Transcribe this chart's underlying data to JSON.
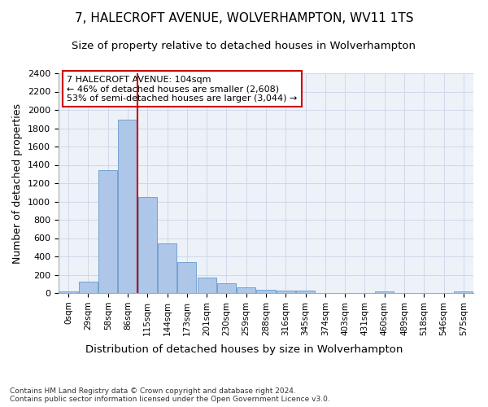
{
  "title_line1": "7, HALECROFT AVENUE, WOLVERHAMPTON, WV11 1TS",
  "title_line2": "Size of property relative to detached houses in Wolverhampton",
  "xlabel": "Distribution of detached houses by size in Wolverhampton",
  "ylabel": "Number of detached properties",
  "footnote": "Contains HM Land Registry data © Crown copyright and database right 2024.\nContains public sector information licensed under the Open Government Licence v3.0.",
  "bar_labels": [
    "0sqm",
    "29sqm",
    "58sqm",
    "86sqm",
    "115sqm",
    "144sqm",
    "173sqm",
    "201sqm",
    "230sqm",
    "259sqm",
    "288sqm",
    "316sqm",
    "345sqm",
    "374sqm",
    "403sqm",
    "431sqm",
    "460sqm",
    "489sqm",
    "518sqm",
    "546sqm",
    "575sqm"
  ],
  "bar_values": [
    15,
    125,
    1340,
    1890,
    1045,
    545,
    335,
    170,
    110,
    60,
    35,
    30,
    25,
    0,
    0,
    0,
    20,
    0,
    0,
    0,
    15
  ],
  "bar_color": "#aec6e8",
  "bar_edge_color": "#6699cc",
  "property_label": "7 HALECROFT AVENUE: 104sqm",
  "pct_smaller": "46% of detached houses are smaller (2,608)",
  "pct_larger": "53% of semi-detached houses are larger (3,044)",
  "annotation_box_color": "#cc0000",
  "vline_color": "#cc0000",
  "grid_color": "#d0d8e8",
  "background_color": "#edf2f9",
  "ylim": [
    0,
    2400
  ],
  "yticks": [
    0,
    200,
    400,
    600,
    800,
    1000,
    1200,
    1400,
    1600,
    1800,
    2000,
    2200,
    2400
  ]
}
